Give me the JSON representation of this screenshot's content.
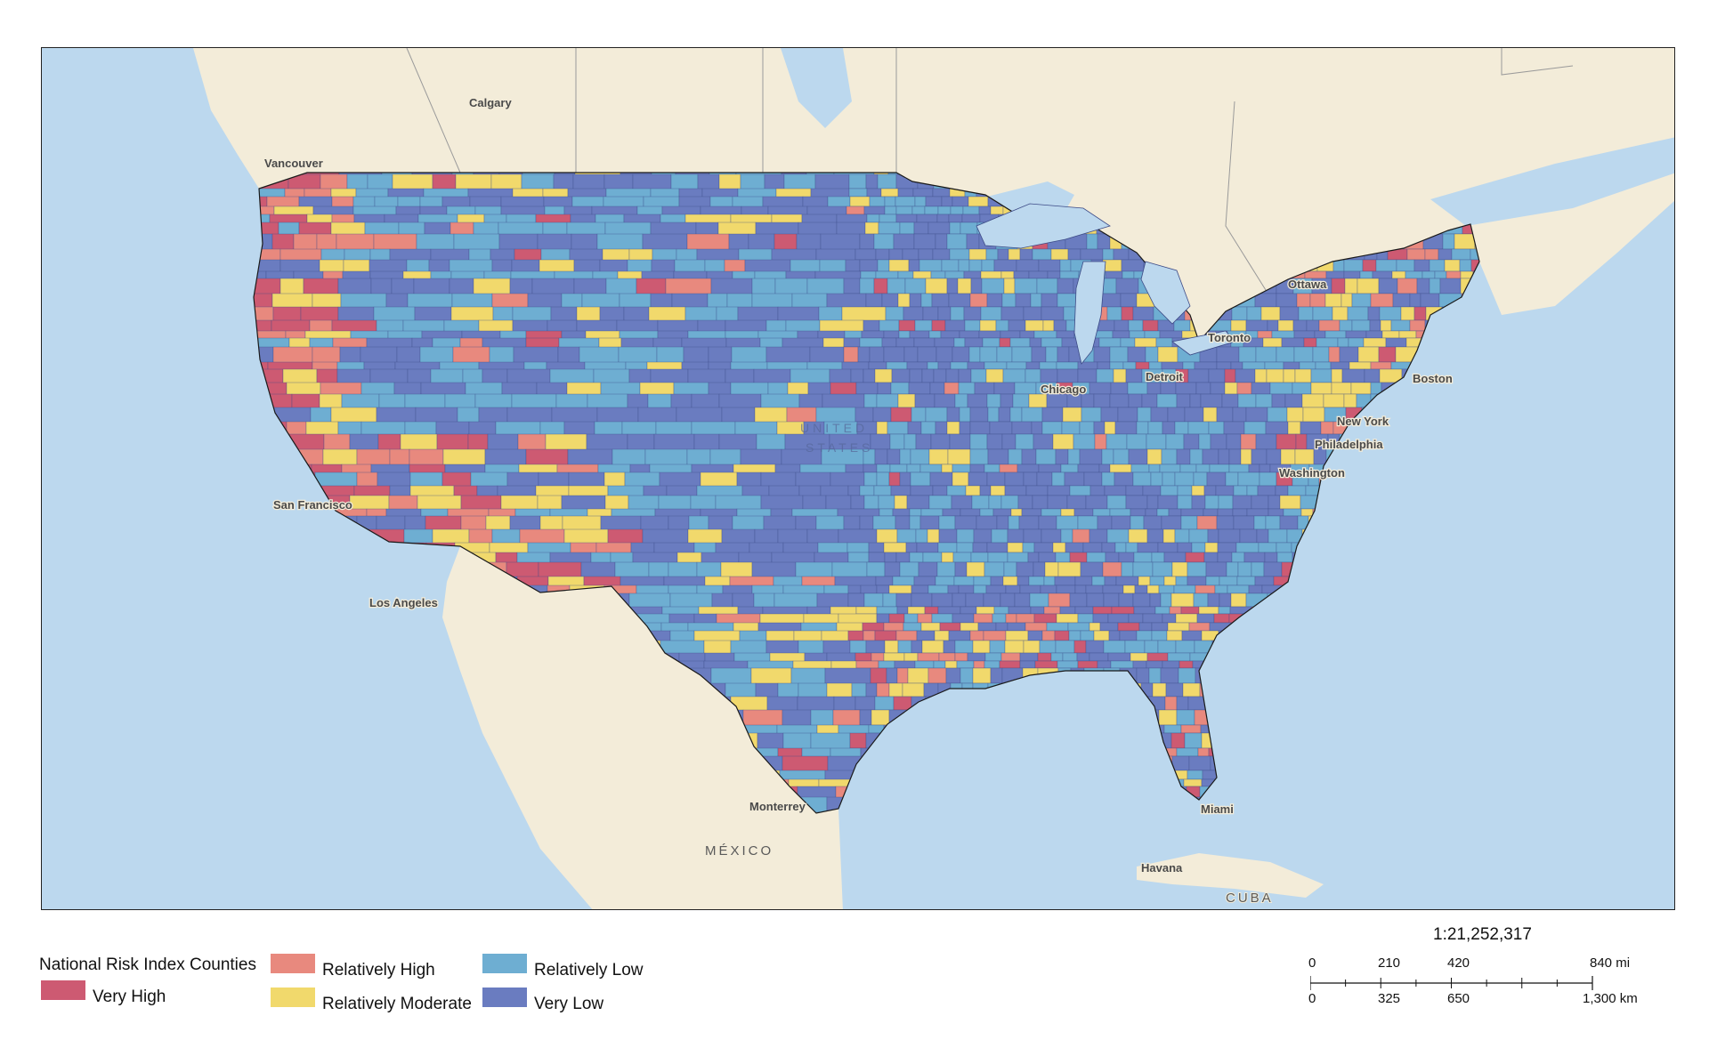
{
  "map": {
    "colors": {
      "water": "#bcd8ee",
      "land": "#f3ecd9",
      "very_high": "#cd5a72",
      "relatively_high": "#e8897e",
      "relatively_moderate": "#f1d96c",
      "relatively_low": "#6eaed2",
      "very_low": "#6a7cc0"
    },
    "labels": {
      "calgary": "Calgary",
      "vancouver": "Vancouver",
      "ottawa": "Ottawa",
      "toronto": "Toronto",
      "chicago": "Chicago",
      "detroit": "Detroit",
      "boston": "Boston",
      "new_york": "New York",
      "philadelphia": "Philadelphia",
      "washington": "Washington",
      "san_francisco": "San Francisco",
      "los_angeles": "Los Angeles",
      "monterrey": "Monterrey",
      "mexico": "MÉXICO",
      "havana": "Havana",
      "cuba": "CUBA",
      "miami": "Miami",
      "united": "UNITED",
      "states": "STATES"
    }
  },
  "legend": {
    "title": "National Risk Index Counties",
    "items": [
      {
        "label": "Very High",
        "color": "#cd5a72"
      },
      {
        "label": "Relatively High",
        "color": "#e8897e"
      },
      {
        "label": "Relatively Moderate",
        "color": "#f1d96c"
      },
      {
        "label": "Relatively Low",
        "color": "#6eaed2"
      },
      {
        "label": "Very Low",
        "color": "#6a7cc0"
      }
    ]
  },
  "scale": {
    "ratio": "1:21,252,317",
    "mi_ticks": [
      "0",
      "210",
      "420",
      "840 mi"
    ],
    "km_ticks": [
      "0",
      "325",
      "650",
      "1,300 km"
    ]
  }
}
